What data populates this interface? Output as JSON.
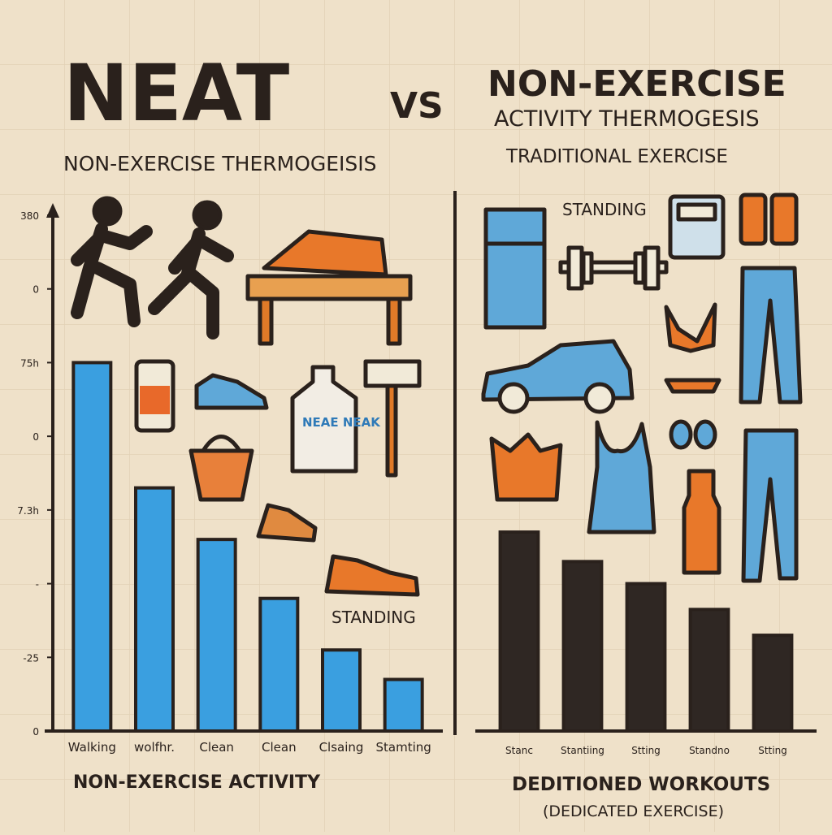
{
  "header": {
    "title": "NEAT",
    "vs": "VS",
    "right_title": "NON-EXERCISE",
    "right_subtitle": "ACTIVITY THERMOGESIS",
    "left_subtitle": "NON-EXERCISE THERMOGEISIS",
    "right_caption": "TRADITIONAL EXERCISE"
  },
  "annotations": {
    "standing_top": "STANDING",
    "bottle_label": "NEAE NEAK",
    "standing_mid": "STANDING"
  },
  "chart_data": [
    {
      "type": "bar",
      "title": "NON-EXERCISE ACTIVITY",
      "color": "#3a9fe0",
      "categories": [
        "Walking",
        "wolfhr.",
        "Clean",
        "Clean",
        "Clsaing",
        "Stamting"
      ],
      "values": [
        5.0,
        3.3,
        2.6,
        1.8,
        1.1,
        0.7
      ],
      "ylim": [
        0,
        7
      ],
      "yticks": [
        0,
        {
          "value": 1,
          "label": "-25"
        },
        {
          "value": 2,
          "label": "-"
        },
        {
          "value": 3,
          "label": "7.3h"
        },
        {
          "value": 4,
          "label": "0"
        },
        {
          "value": 5,
          "label": "75h"
        },
        {
          "value": 6,
          "label": "0"
        },
        {
          "value": 7,
          "label": "380"
        }
      ]
    },
    {
      "type": "bar",
      "title": "DEDITIONED WORKOUTS",
      "subtitle": "(DEDICATED EXERCISE)",
      "color": "#2f2723",
      "categories": [
        "Stanc",
        "Stantiing",
        "Stting",
        "Standno",
        "Stting"
      ],
      "values": [
        2.7,
        2.3,
        2.0,
        1.65,
        1.3
      ],
      "ylim": [
        0,
        7
      ]
    }
  ]
}
